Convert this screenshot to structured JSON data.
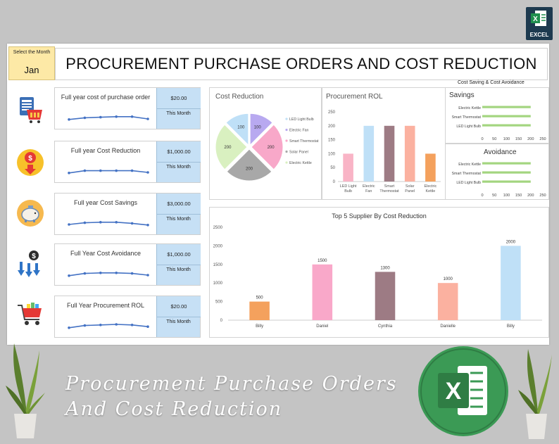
{
  "badge": {
    "text": "EXCEL"
  },
  "month_selector": {
    "label": "Select the Month",
    "value": "Jan"
  },
  "page_title": "PROCUREMENT PURCHASE ORDERS AND COST REDUCTION",
  "kpis": [
    {
      "title": "Full year cost of purchase order",
      "value": "$20.00",
      "sub": "This Month",
      "icon": "clipboard-cart-icon",
      "trend": [
        0.2,
        0.35,
        0.4,
        0.45,
        0.45,
        0.25
      ]
    },
    {
      "title": "Full year Cost Reduction",
      "value": "$1,000.00",
      "sub": "This Month",
      "icon": "cost-down-coin-icon",
      "trend": [
        0.2,
        0.4,
        0.4,
        0.4,
        0.4,
        0.25
      ]
    },
    {
      "title": "Full year Cost Savings",
      "value": "$3,000.00",
      "sub": "This Month",
      "icon": "piggy-bank-icon",
      "trend": [
        0.25,
        0.4,
        0.45,
        0.45,
        0.35,
        0.2
      ]
    },
    {
      "title": "Full Year Cost Avoidance",
      "value": "$1,000.00",
      "sub": "This Month",
      "icon": "dollar-down-arrows-icon",
      "trend": [
        0.2,
        0.4,
        0.45,
        0.45,
        0.4,
        0.25
      ]
    },
    {
      "title": "Full Year Procurement ROL",
      "value": "$20.00",
      "sub": "This Month",
      "icon": "shopping-cart-icon",
      "trend": [
        0.2,
        0.4,
        0.45,
        0.5,
        0.45,
        0.3
      ]
    }
  ],
  "colors": {
    "blue_cell": "#c6e0f5",
    "led": "#f9b4c6",
    "fan": "#bfe0f7",
    "thermostat": "#9d7b84",
    "solar": "#fbb1a0",
    "kettle": "#f4a15d",
    "spark": "#4472c4",
    "green_bar": "#a3d57f",
    "supplier": [
      "#f4a15d",
      "#f9a8c9",
      "#9d7b84",
      "#fbb1a0",
      "#bfe0f7"
    ],
    "pie": [
      "#bfe0f7",
      "#b8a9f0",
      "#f8a8c9",
      "#a8a8a8",
      "#d9f0c0"
    ]
  },
  "chart_data": [
    {
      "type": "pie",
      "title": "Cost Reduction",
      "categories": [
        "LED Light Bulb",
        "Electric Fan",
        "Smart Thermostat",
        "Solar Panel",
        "Electric Kettle"
      ],
      "values": [
        100,
        100,
        200,
        200,
        200
      ],
      "slice_labels": [
        "100",
        "100",
        "200",
        "200",
        "200"
      ],
      "legend_position": "right"
    },
    {
      "type": "bar",
      "title": "Procurement ROL",
      "categories": [
        "LED Light Bulb",
        "Electric Fan",
        "Smart Thermostat",
        "Solar Panel",
        "Electric Kettle"
      ],
      "values": [
        100,
        200,
        200,
        200,
        100
      ],
      "ylim": [
        0,
        250
      ],
      "yticks": [
        "0",
        "50",
        "100",
        "150",
        "200",
        "250"
      ],
      "grid": false
    },
    {
      "type": "bar",
      "orientation": "horizontal",
      "group_title": "Cost Saving & Cost Avoidance",
      "title": "Savings",
      "categories": [
        "Electric Kettle",
        "Smart Thermostat",
        "LED Light Bulb"
      ],
      "values": [
        200,
        200,
        200
      ],
      "xlim": [
        0,
        250
      ],
      "xticks": [
        "0",
        "50",
        "100",
        "150",
        "200",
        "250"
      ]
    },
    {
      "type": "bar",
      "orientation": "horizontal",
      "title": "Avoidance",
      "categories": [
        "Electric Kettle",
        "Smart Thermostat",
        "LED Light Bulb"
      ],
      "values": [
        200,
        200,
        200
      ],
      "xlim": [
        0,
        250
      ],
      "xticks": [
        "0",
        "50",
        "100",
        "150",
        "200",
        "250"
      ]
    },
    {
      "type": "bar",
      "title": "Top 5 Supplier By Cost Reduction",
      "categories": [
        "Billy",
        "Daniel",
        "Cynthia",
        "Danielle",
        "Billy"
      ],
      "values": [
        500,
        1500,
        1300,
        1000,
        2000
      ],
      "data_labels": [
        "500",
        "1500",
        "1300",
        "1000",
        "2000"
      ],
      "ylim": [
        0,
        2500
      ],
      "yticks": [
        "0",
        "500",
        "1000",
        "1500",
        "2000",
        "2500"
      ]
    }
  ],
  "overlay": {
    "line1": "Procurement Purchase Orders",
    "line2": "And Cost Reduction"
  },
  "excel_logo_letter": "X"
}
